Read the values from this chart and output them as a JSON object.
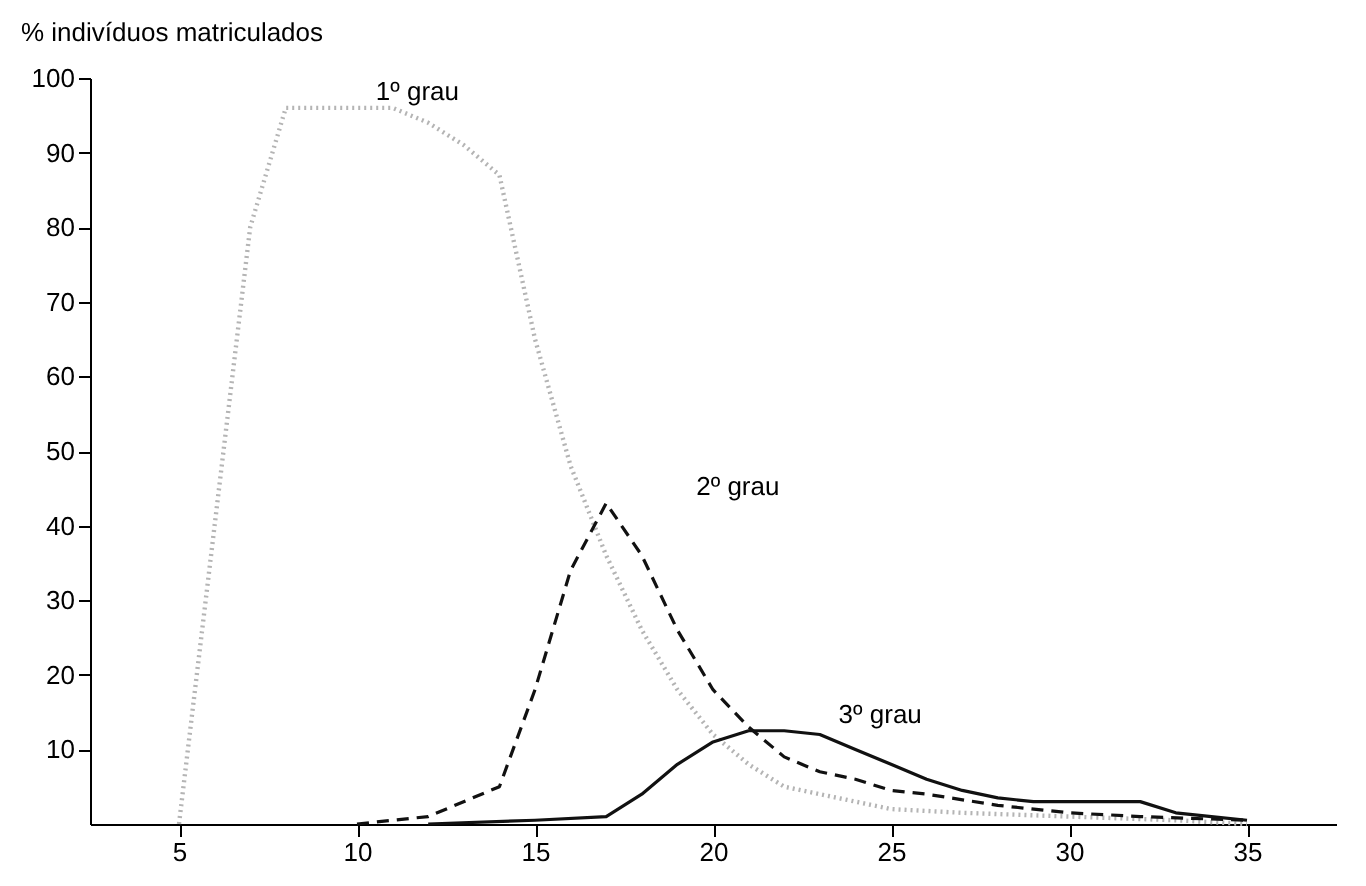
{
  "chart_data": {
    "type": "line",
    "ylabel": "% indivíduos matriculados",
    "xlim": [
      2.5,
      37.5
    ],
    "ylim": [
      0,
      100
    ],
    "xticks": [
      5,
      10,
      15,
      20,
      25,
      30,
      35
    ],
    "yticks": [
      10,
      20,
      30,
      40,
      50,
      60,
      70,
      80,
      90,
      100
    ],
    "grid": false,
    "marker": "none",
    "series": [
      {
        "name": "1º grau",
        "color": "#b4b4b4",
        "line_style": "dotted",
        "x": [
          5,
          6,
          7,
          8,
          9,
          10,
          11,
          12,
          13,
          14,
          15,
          16,
          17,
          18,
          19,
          20,
          21,
          22,
          23,
          24,
          25,
          27,
          30,
          33,
          35
        ],
        "values": [
          0,
          40,
          80,
          96,
          96,
          96,
          96,
          94,
          91,
          87,
          65,
          48,
          36,
          26,
          18,
          12,
          8,
          5,
          4,
          3,
          2,
          1.5,
          1,
          0.5,
          0
        ]
      },
      {
        "name": "2º grau",
        "color": "#111111",
        "line_style": "dashed",
        "x": [
          10,
          12,
          14,
          15,
          16,
          17,
          18,
          19,
          20,
          21,
          22,
          23,
          24,
          25,
          26,
          28,
          30,
          32,
          35
        ],
        "values": [
          0,
          1,
          5,
          18,
          34,
          43,
          36,
          26,
          18,
          13,
          9,
          7,
          6,
          4.5,
          4,
          2.5,
          1.5,
          1,
          0.5
        ]
      },
      {
        "name": "3º grau",
        "color": "#111111",
        "line_style": "solid",
        "x": [
          12,
          15,
          17,
          18,
          19,
          20,
          21,
          22,
          23,
          24,
          25,
          26,
          27,
          28,
          29,
          30,
          31,
          32,
          33,
          34,
          35
        ],
        "values": [
          0,
          0.5,
          1,
          4,
          8,
          11,
          12.5,
          12.5,
          12,
          10,
          8,
          6,
          4.5,
          3.5,
          3,
          3,
          3,
          3,
          1.5,
          1,
          0.5
        ]
      }
    ]
  }
}
